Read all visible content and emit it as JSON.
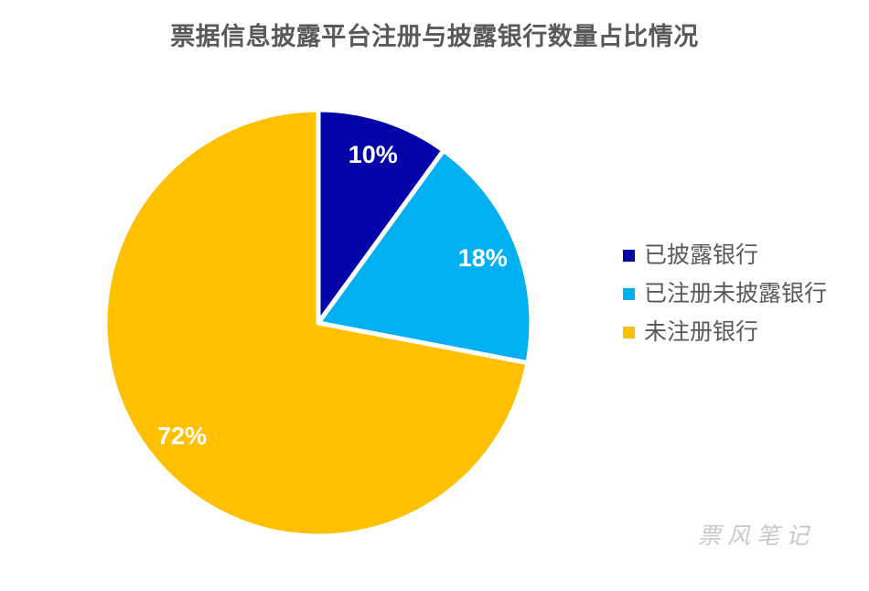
{
  "page": {
    "title": "票据信息披露平台注册与披露银行数量占比情况",
    "watermark": "票风笔记"
  },
  "chart_data": {
    "type": "pie",
    "title": "票据信息披露平台注册与披露银行数量占比情况",
    "categories": [
      "已披露银行",
      "已注册未披露银行",
      "未注册银行"
    ],
    "values": [
      10,
      18,
      72
    ],
    "data_labels": [
      "10%",
      "18%",
      "72%"
    ],
    "colors": [
      "#0404A8",
      "#00B0F0",
      "#FFC000"
    ],
    "start_angle_deg": 0,
    "direction": "clockwise",
    "legend_position": "right",
    "slice_label_color": "#FFFFFF",
    "slice_border_color": "#FFFFFF"
  },
  "style": {
    "background": "#FFFFFF",
    "title_color": "#595959",
    "legend_text_color": "#595959",
    "watermark_color": "#C8C8C8"
  }
}
